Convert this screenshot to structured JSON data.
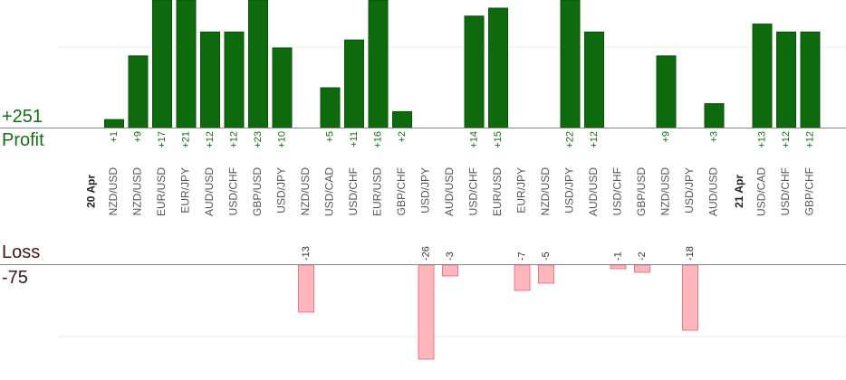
{
  "summary": {
    "profit_total": "+251",
    "profit_label": "Profit",
    "loss_label": "Loss",
    "loss_total": "-75"
  },
  "colors": {
    "profit_bar": "#0d6b0d",
    "profit_bar_edge": "#0a4f0a",
    "loss_bar": "#ffb6bc",
    "loss_bar_edge": "#e07c86",
    "axis": "#888888",
    "grid": "#eeeeee"
  },
  "chart_data": {
    "type": "bar",
    "profit_ylim": [
      0,
      16
    ],
    "loss_ylim": [
      0,
      26
    ],
    "grid": true,
    "date_groups": [
      {
        "label": "20 Apr",
        "start_index": 0
      },
      {
        "label": "21 Apr",
        "start_index": 26
      }
    ],
    "bars": [
      {
        "pair": "NZD/USD",
        "value": 1,
        "label": "+1"
      },
      {
        "pair": "NZD/USD",
        "value": 9,
        "label": "+9"
      },
      {
        "pair": "EUR/USD",
        "value": 17,
        "label": "+17"
      },
      {
        "pair": "EUR/JPY",
        "value": 21,
        "label": "+21"
      },
      {
        "pair": "AUD/USD",
        "value": 12,
        "label": "+12"
      },
      {
        "pair": "USD/CHF",
        "value": 12,
        "label": "+12"
      },
      {
        "pair": "GBP/USD",
        "value": 23,
        "label": "+23"
      },
      {
        "pair": "USD/JPY",
        "value": 10,
        "label": "+10"
      },
      {
        "pair": "NZD/USD",
        "value": -13,
        "label": "-13"
      },
      {
        "pair": "USD/CAD",
        "value": 5,
        "label": "+5"
      },
      {
        "pair": "USD/CHF",
        "value": 11,
        "label": "+11"
      },
      {
        "pair": "EUR/USD",
        "value": 16,
        "label": "+16"
      },
      {
        "pair": "GBP/CHF",
        "value": 2,
        "label": "+2"
      },
      {
        "pair": "USD/JPY",
        "value": -26,
        "label": "-26"
      },
      {
        "pair": "AUD/USD",
        "value": -3,
        "label": "-3"
      },
      {
        "pair": "USD/CHF",
        "value": 14,
        "label": "+14"
      },
      {
        "pair": "EUR/USD",
        "value": 15,
        "label": "+15"
      },
      {
        "pair": "EUR/JPY",
        "value": -7,
        "label": "-7"
      },
      {
        "pair": "NZD/USD",
        "value": -5,
        "label": "-5"
      },
      {
        "pair": "USD/JPY",
        "value": 22,
        "label": "+22"
      },
      {
        "pair": "AUD/USD",
        "value": 12,
        "label": "+12"
      },
      {
        "pair": "USD/CHF",
        "value": -1,
        "label": "-1"
      },
      {
        "pair": "GBP/USD",
        "value": -2,
        "label": "-2"
      },
      {
        "pair": "NZD/USD",
        "value": 9,
        "label": "+9"
      },
      {
        "pair": "USD/JPY",
        "value": -18,
        "label": "-18"
      },
      {
        "pair": "AUD/USD",
        "value": 3,
        "label": "+3"
      },
      {
        "pair": "USD/CAD",
        "value": 13,
        "label": "+13"
      },
      {
        "pair": "USD/CHF",
        "value": 12,
        "label": "+12"
      },
      {
        "pair": "GBP/CHF",
        "value": 12,
        "label": "+12"
      }
    ]
  }
}
